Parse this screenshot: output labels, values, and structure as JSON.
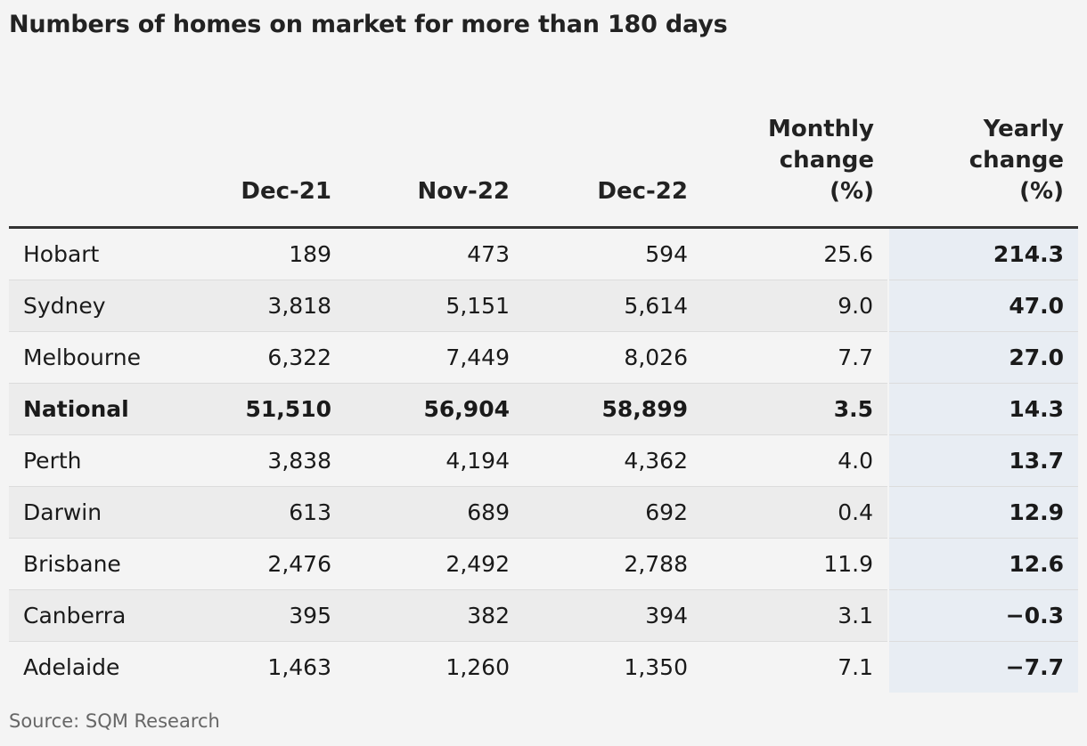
{
  "title": "Numbers of homes on market for more than 180 days",
  "source": "Source: SQM Research",
  "chart_data": {
    "type": "table",
    "title": "Numbers of homes on market for more than 180 days",
    "columns": [
      "",
      "Dec-21",
      "Nov-22",
      "Dec-22",
      "Monthly change (%)",
      "Yearly change (%)"
    ],
    "header": {
      "city": "",
      "dec21": "Dec-21",
      "nov22": "Nov-22",
      "dec22": "Dec-22",
      "monthly": [
        "Monthly",
        "change",
        "(%)"
      ],
      "yearly": [
        "Yearly",
        "change",
        "(%)"
      ]
    },
    "rows": [
      {
        "city": "Hobart",
        "dec21": "189",
        "nov22": "473",
        "dec22": "594",
        "monthly": "25.6",
        "yearly": "214.3",
        "bold": false
      },
      {
        "city": "Sydney",
        "dec21": "3,818",
        "nov22": "5,151",
        "dec22": "5,614",
        "monthly": "9.0",
        "yearly": "47.0",
        "bold": false
      },
      {
        "city": "Melbourne",
        "dec21": "6,322",
        "nov22": "7,449",
        "dec22": "8,026",
        "monthly": "7.7",
        "yearly": "27.0",
        "bold": false
      },
      {
        "city": "National",
        "dec21": "51,510",
        "nov22": "56,904",
        "dec22": "58,899",
        "monthly": "3.5",
        "yearly": "14.3",
        "bold": true
      },
      {
        "city": "Perth",
        "dec21": "3,838",
        "nov22": "4,194",
        "dec22": "4,362",
        "monthly": "4.0",
        "yearly": "13.7",
        "bold": false
      },
      {
        "city": "Darwin",
        "dec21": "613",
        "nov22": "689",
        "dec22": "692",
        "monthly": "0.4",
        "yearly": "12.9",
        "bold": false
      },
      {
        "city": "Brisbane",
        "dec21": "2,476",
        "nov22": "2,492",
        "dec22": "2,788",
        "monthly": "11.9",
        "yearly": "12.6",
        "bold": false
      },
      {
        "city": "Canberra",
        "dec21": "395",
        "nov22": "382",
        "dec22": "394",
        "monthly": "3.1",
        "yearly": "−0.3",
        "bold": false
      },
      {
        "city": "Adelaide",
        "dec21": "1,463",
        "nov22": "1,260",
        "dec22": "1,350",
        "monthly": "7.1",
        "yearly": "−7.7",
        "bold": false
      }
    ]
  }
}
